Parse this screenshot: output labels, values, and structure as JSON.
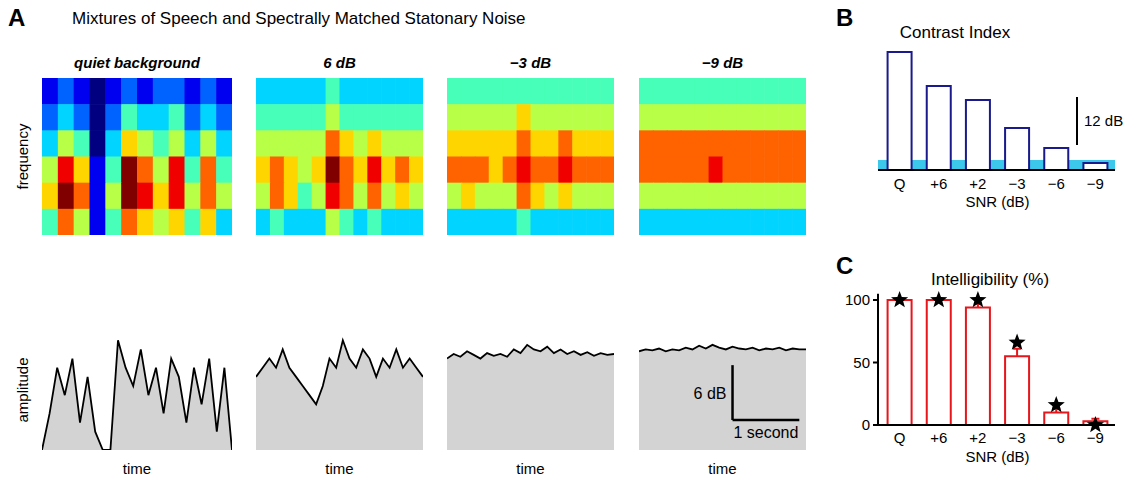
{
  "figure": {
    "title": "Mixtures of Speech and Spectrally Matched Statonary Noise",
    "panel_labels": [
      "A",
      "B",
      "C"
    ]
  },
  "chart_data": [
    {
      "type": "heatmap",
      "title": "quiet background",
      "y_label": "frequency",
      "zlim": [
        0,
        9
      ],
      "tick_labels": false,
      "cells": [
        [
          1,
          2,
          1,
          0,
          1,
          2,
          1,
          2,
          2,
          1,
          2,
          1
        ],
        [
          2,
          3,
          2,
          0,
          2,
          4,
          3,
          3,
          4,
          2,
          3,
          2
        ],
        [
          3,
          5,
          4,
          0,
          3,
          6,
          5,
          4,
          5,
          3,
          5,
          3
        ],
        [
          5,
          8,
          6,
          1,
          4,
          9,
          7,
          5,
          8,
          4,
          7,
          4
        ],
        [
          6,
          9,
          7,
          1,
          5,
          9,
          8,
          6,
          8,
          5,
          7,
          5
        ],
        [
          4,
          7,
          5,
          1,
          4,
          7,
          6,
          5,
          6,
          4,
          6,
          3
        ]
      ]
    },
    {
      "type": "heatmap",
      "title": "6 dB",
      "zlim": [
        0,
        9
      ],
      "tick_labels": false,
      "cells": [
        [
          3,
          3,
          3,
          3,
          3,
          4,
          3,
          3,
          3,
          3,
          3,
          3
        ],
        [
          4,
          4,
          4,
          4,
          4,
          5,
          4,
          4,
          4,
          4,
          4,
          4
        ],
        [
          5,
          5,
          5,
          5,
          5,
          7,
          6,
          5,
          6,
          5,
          5,
          5
        ],
        [
          6,
          7,
          6,
          5,
          6,
          9,
          7,
          6,
          8,
          6,
          7,
          6
        ],
        [
          5,
          7,
          6,
          4,
          5,
          8,
          7,
          5,
          7,
          5,
          6,
          5
        ],
        [
          3,
          4,
          3,
          3,
          3,
          5,
          4,
          3,
          4,
          3,
          3,
          3
        ]
      ]
    },
    {
      "type": "heatmap",
      "title": "−3 dB",
      "zlim": [
        0,
        9
      ],
      "tick_labels": false,
      "cells": [
        [
          4,
          4,
          4,
          4,
          4,
          4,
          4,
          4,
          4,
          4,
          4,
          4
        ],
        [
          5,
          5,
          5,
          5,
          5,
          6,
          5,
          5,
          5,
          5,
          5,
          5
        ],
        [
          6,
          6,
          6,
          6,
          6,
          7,
          6,
          6,
          7,
          6,
          6,
          6
        ],
        [
          7,
          7,
          7,
          6,
          7,
          8,
          7,
          7,
          8,
          7,
          7,
          7
        ],
        [
          5,
          6,
          5,
          5,
          5,
          7,
          6,
          5,
          6,
          5,
          5,
          5
        ],
        [
          3,
          3,
          3,
          3,
          3,
          4,
          3,
          3,
          3,
          3,
          3,
          3
        ]
      ]
    },
    {
      "type": "heatmap",
      "title": "−9 dB",
      "zlim": [
        0,
        9
      ],
      "tick_labels": false,
      "cells": [
        [
          4,
          4,
          4,
          4,
          4,
          4,
          4,
          4,
          4,
          4,
          4,
          4
        ],
        [
          5,
          5,
          5,
          5,
          5,
          5,
          5,
          5,
          5,
          5,
          5,
          5
        ],
        [
          7,
          7,
          7,
          7,
          7,
          7,
          7,
          7,
          7,
          7,
          7,
          7
        ],
        [
          7,
          7,
          7,
          7,
          7,
          8,
          7,
          7,
          7,
          7,
          7,
          7
        ],
        [
          5,
          5,
          5,
          5,
          5,
          5,
          5,
          5,
          5,
          5,
          5,
          5
        ],
        [
          3,
          3,
          3,
          3,
          3,
          3,
          3,
          3,
          3,
          3,
          3,
          3
        ]
      ]
    },
    {
      "type": "area",
      "y_label": "amplitude",
      "x_label": "time",
      "xlim": [
        0,
        2.5
      ],
      "ylim": [
        0,
        14
      ],
      "tick_labels": false,
      "color": "#d3d3d3",
      "x": [
        0,
        0.1,
        0.2,
        0.3,
        0.4,
        0.5,
        0.6,
        0.7,
        0.8,
        0.9,
        1,
        1.1,
        1.2,
        1.3,
        1.4,
        1.5,
        1.6,
        1.7,
        1.8,
        1.9,
        2,
        2.1,
        2.2,
        2.3,
        2.4,
        2.5
      ],
      "values": [
        0,
        4,
        9,
        6,
        10,
        3,
        8,
        2,
        0,
        0,
        12,
        9,
        7,
        11,
        6,
        9,
        4,
        10,
        8,
        3,
        9,
        5,
        10,
        2,
        9,
        0
      ]
    },
    {
      "type": "area",
      "x_label": "time",
      "xlim": [
        0,
        2.5
      ],
      "ylim": [
        0,
        14
      ],
      "tick_labels": false,
      "color": "#d3d3d3",
      "x": [
        0,
        0.1,
        0.2,
        0.3,
        0.4,
        0.5,
        0.6,
        0.7,
        0.8,
        0.9,
        1,
        1.1,
        1.2,
        1.3,
        1.4,
        1.5,
        1.6,
        1.7,
        1.8,
        1.9,
        2,
        2.1,
        2.2,
        2.3,
        2.4,
        2.5
      ],
      "values": [
        8,
        9,
        10,
        9,
        11,
        9,
        8,
        7,
        6,
        5,
        7,
        10,
        9,
        12,
        10,
        9,
        11,
        10,
        8,
        10,
        9,
        11,
        9,
        10,
        9,
        8
      ]
    },
    {
      "type": "area",
      "x_label": "time",
      "xlim": [
        0,
        2.5
      ],
      "ylim": [
        0,
        14
      ],
      "tick_labels": false,
      "color": "#d3d3d3",
      "x": [
        0,
        0.1,
        0.2,
        0.3,
        0.4,
        0.5,
        0.6,
        0.7,
        0.8,
        0.9,
        1,
        1.1,
        1.2,
        1.3,
        1.4,
        1.5,
        1.6,
        1.7,
        1.8,
        1.9,
        2,
        2.1,
        2.2,
        2.3,
        2.4,
        2.5
      ],
      "values": [
        10,
        10.5,
        10.2,
        10.8,
        10.4,
        10,
        10.6,
        10.3,
        10.5,
        10.2,
        11,
        10.6,
        11.5,
        11,
        10.8,
        11.3,
        10.6,
        11,
        10.5,
        10.8,
        10.4,
        10.7,
        10.3,
        10.6,
        10.4,
        10.5
      ]
    },
    {
      "type": "area",
      "x_label": "time",
      "xlim": [
        0,
        2.5
      ],
      "ylim": [
        0,
        14
      ],
      "tick_labels": false,
      "color": "#d3d3d3",
      "scale_bar": {
        "y": 6,
        "y_label": "6 dB",
        "x": 1,
        "x_label": "1 second"
      },
      "x": [
        0,
        0.1,
        0.2,
        0.3,
        0.4,
        0.5,
        0.6,
        0.7,
        0.8,
        0.9,
        1,
        1.1,
        1.2,
        1.3,
        1.4,
        1.5,
        1.6,
        1.7,
        1.8,
        1.9,
        2,
        2.1,
        2.2,
        2.3,
        2.4,
        2.5
      ],
      "values": [
        10.8,
        11,
        10.9,
        11.1,
        10.8,
        11,
        10.9,
        11.2,
        11,
        11.4,
        11.1,
        11.5,
        11.2,
        11,
        11.3,
        11.1,
        11,
        11.2,
        10.9,
        11.1,
        11,
        11.2,
        10.9,
        11.1,
        11,
        11
      ]
    },
    {
      "type": "bar",
      "title": "Contrast Index",
      "x_label": "SNR (dB)",
      "categories": [
        "Q",
        "+6",
        "+2",
        "−3",
        "−6",
        "−9"
      ],
      "values": [
        29.5,
        21,
        17.5,
        10.5,
        5.5,
        1.75
      ],
      "ylim": [
        0,
        32
      ],
      "color": "#1a1a8c",
      "tick_labels": "x",
      "reference_band": [
        0,
        2.5
      ],
      "scale_bar": {
        "y": 12,
        "y_label": "12 dB"
      }
    },
    {
      "type": "bar",
      "title": "Intelligibility (%)",
      "x_label": "SNR (dB)",
      "categories": [
        "Q",
        "+6",
        "+2",
        "−3",
        "−6",
        "−9"
      ],
      "ylim": [
        0,
        105
      ],
      "yticks": [
        0,
        50,
        100
      ],
      "series": [
        {
          "type": "bar",
          "color": "#e8151b",
          "values": [
            100,
            100,
            94,
            55,
            10,
            3
          ],
          "errors": [
            0,
            0,
            3,
            6,
            3,
            2
          ]
        },
        {
          "type": "scatter",
          "marker": "star",
          "color": "#000000",
          "values": [
            100,
            100,
            100,
            66,
            16,
            0
          ]
        }
      ]
    }
  ]
}
